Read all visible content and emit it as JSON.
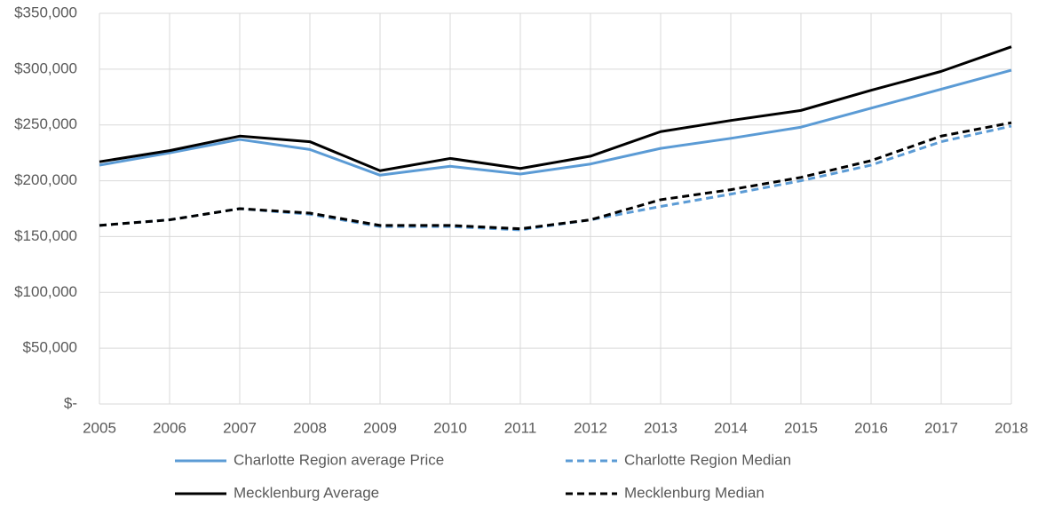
{
  "chart_data": {
    "type": "line",
    "x": [
      2005,
      2006,
      2007,
      2008,
      2009,
      2010,
      2011,
      2012,
      2013,
      2014,
      2015,
      2016,
      2017,
      2018
    ],
    "xlim": [
      2005,
      2018
    ],
    "xticks": [
      2005,
      2006,
      2007,
      2008,
      2009,
      2010,
      2011,
      2012,
      2013,
      2014,
      2015,
      2016,
      2017,
      2018
    ],
    "ylim": [
      0,
      350000
    ],
    "yticks": [
      {
        "value": 0,
        "label": "$-"
      },
      {
        "value": 50000,
        "label": "$50,000"
      },
      {
        "value": 100000,
        "label": "$100,000"
      },
      {
        "value": 150000,
        "label": "$150,000"
      },
      {
        "value": 200000,
        "label": "$200,000"
      },
      {
        "value": 250000,
        "label": "$250,000"
      },
      {
        "value": 300000,
        "label": "$300,000"
      },
      {
        "value": 350000,
        "label": "$350,000"
      }
    ],
    "grid": true,
    "legend": "bottom",
    "series": [
      {
        "name": "Charlotte Region average Price",
        "color": "#5b9bd5",
        "dashed": false,
        "values": [
          214000,
          225000,
          237000,
          228000,
          205000,
          213000,
          206000,
          215000,
          229000,
          238000,
          248000,
          265000,
          282000,
          299000
        ]
      },
      {
        "name": "Charlotte Region Median",
        "color": "#5b9bd5",
        "dashed": true,
        "values": [
          160000,
          165000,
          175000,
          170000,
          159000,
          159000,
          156000,
          165000,
          177000,
          188000,
          200000,
          214000,
          235000,
          249000
        ]
      },
      {
        "name": "Mecklenburg Average",
        "color": "#000000",
        "dashed": false,
        "values": [
          217000,
          227000,
          240000,
          235000,
          209000,
          220000,
          211000,
          222000,
          244000,
          254000,
          263000,
          281000,
          298000,
          320000
        ]
      },
      {
        "name": "Mecklenburg Median",
        "color": "#000000",
        "dashed": true,
        "values": [
          160000,
          165000,
          175000,
          171000,
          160000,
          160000,
          157000,
          165000,
          183000,
          192000,
          203000,
          218000,
          240000,
          252000
        ]
      }
    ]
  }
}
